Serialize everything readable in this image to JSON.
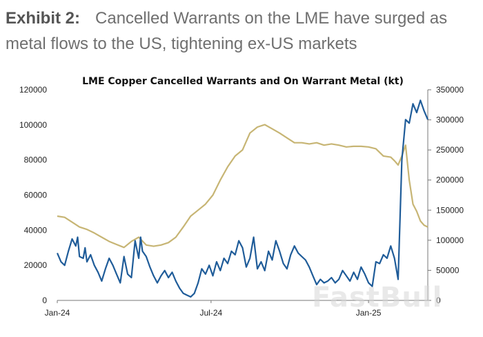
{
  "exhibit": {
    "label": "Exhibit 2:",
    "title": "Cancelled Warrants on the LME have surged as metal flows to the US, tightening ex-US markets"
  },
  "watermark": "FastBull",
  "chart_data": {
    "type": "line",
    "title": "LME Copper Cancelled Warrants and On Warrant Metal (kt)",
    "x_tick_labels": [
      "Jan-24",
      "Jul-24",
      "Jan-25"
    ],
    "left_axis": {
      "ylim": [
        0,
        120000
      ],
      "ticks": [
        "0",
        "20000",
        "40000",
        "60000",
        "80000",
        "100000",
        "120000"
      ]
    },
    "right_axis": {
      "ylim": [
        0,
        350000
      ],
      "ticks": [
        "0",
        "50000",
        "100000",
        "150000",
        "200000",
        "250000",
        "300000",
        "350000"
      ]
    },
    "colors": {
      "cancelled": "#1f5c99",
      "on_warrant": "#c7b574",
      "text": "#222222",
      "axis": "#777777"
    },
    "series": [
      {
        "name": "Cancelled Warrants",
        "axis": "left",
        "x": [
          0,
          0.01,
          0.02,
          0.03,
          0.04,
          0.05,
          0.055,
          0.06,
          0.07,
          0.075,
          0.08,
          0.09,
          0.1,
          0.11,
          0.12,
          0.13,
          0.14,
          0.15,
          0.16,
          0.17,
          0.18,
          0.19,
          0.2,
          0.21,
          0.22,
          0.225,
          0.23,
          0.24,
          0.25,
          0.26,
          0.27,
          0.28,
          0.29,
          0.3,
          0.31,
          0.32,
          0.33,
          0.34,
          0.35,
          0.36,
          0.37,
          0.38,
          0.39,
          0.4,
          0.41,
          0.42,
          0.43,
          0.44,
          0.45,
          0.46,
          0.47,
          0.48,
          0.49,
          0.5,
          0.51,
          0.52,
          0.53,
          0.54,
          0.55,
          0.56,
          0.57,
          0.58,
          0.59,
          0.6,
          0.61,
          0.62,
          0.63,
          0.64,
          0.65,
          0.66,
          0.67,
          0.68,
          0.69,
          0.7,
          0.71,
          0.72,
          0.73,
          0.74,
          0.75,
          0.76,
          0.77,
          0.78,
          0.79,
          0.8,
          0.81,
          0.82,
          0.83,
          0.84,
          0.85,
          0.86,
          0.87,
          0.88,
          0.89,
          0.9,
          0.91,
          0.92,
          0.93,
          0.94,
          0.95,
          0.96,
          0.97,
          0.98,
          0.99,
          1.0
        ],
        "values": [
          27000,
          22000,
          20000,
          28000,
          35000,
          31000,
          36000,
          25000,
          24000,
          30000,
          22000,
          26000,
          20000,
          16000,
          11000,
          18000,
          24000,
          20000,
          15000,
          10000,
          25000,
          15000,
          13000,
          34000,
          24000,
          36000,
          28000,
          25000,
          19000,
          14000,
          10000,
          14000,
          17000,
          13000,
          16000,
          11000,
          7000,
          4000,
          3000,
          2000,
          4000,
          10000,
          18000,
          15000,
          20000,
          14000,
          22000,
          17000,
          24000,
          21000,
          28000,
          26000,
          34000,
          30000,
          19000,
          24000,
          36000,
          18000,
          22000,
          17000,
          28000,
          23000,
          34000,
          28000,
          21000,
          18000,
          26000,
          31000,
          27000,
          25000,
          23000,
          19000,
          14000,
          9000,
          12000,
          10000,
          11000,
          13000,
          10000,
          12000,
          17000,
          14000,
          11000,
          16000,
          12000,
          19000,
          15000,
          10000,
          8000,
          22000,
          21000,
          26000,
          24000,
          31000,
          24000,
          12000,
          80000,
          103000,
          101000,
          112000,
          107000,
          114000,
          108000,
          103000
        ]
      },
      {
        "name": "On Warrant Metal",
        "axis": "right",
        "x": [
          0,
          0.02,
          0.04,
          0.06,
          0.08,
          0.1,
          0.12,
          0.14,
          0.16,
          0.18,
          0.2,
          0.22,
          0.24,
          0.26,
          0.28,
          0.3,
          0.32,
          0.34,
          0.36,
          0.38,
          0.4,
          0.42,
          0.44,
          0.46,
          0.48,
          0.5,
          0.52,
          0.54,
          0.56,
          0.58,
          0.6,
          0.62,
          0.64,
          0.66,
          0.68,
          0.7,
          0.72,
          0.74,
          0.76,
          0.78,
          0.8,
          0.82,
          0.84,
          0.86,
          0.88,
          0.9,
          0.91,
          0.92,
          0.93,
          0.94,
          0.95,
          0.96,
          0.97,
          0.98,
          0.99,
          1.0
        ],
        "values": [
          140000,
          138000,
          130000,
          122000,
          118000,
          112000,
          105000,
          98000,
          93000,
          88000,
          98000,
          105000,
          92000,
          90000,
          92000,
          96000,
          105000,
          122000,
          140000,
          150000,
          160000,
          175000,
          200000,
          222000,
          240000,
          250000,
          278000,
          288000,
          292000,
          285000,
          278000,
          270000,
          262000,
          262000,
          260000,
          262000,
          258000,
          260000,
          258000,
          255000,
          256000,
          256000,
          255000,
          252000,
          240000,
          238000,
          232000,
          225000,
          240000,
          258000,
          200000,
          160000,
          148000,
          132000,
          125000,
          122000
        ]
      }
    ]
  }
}
